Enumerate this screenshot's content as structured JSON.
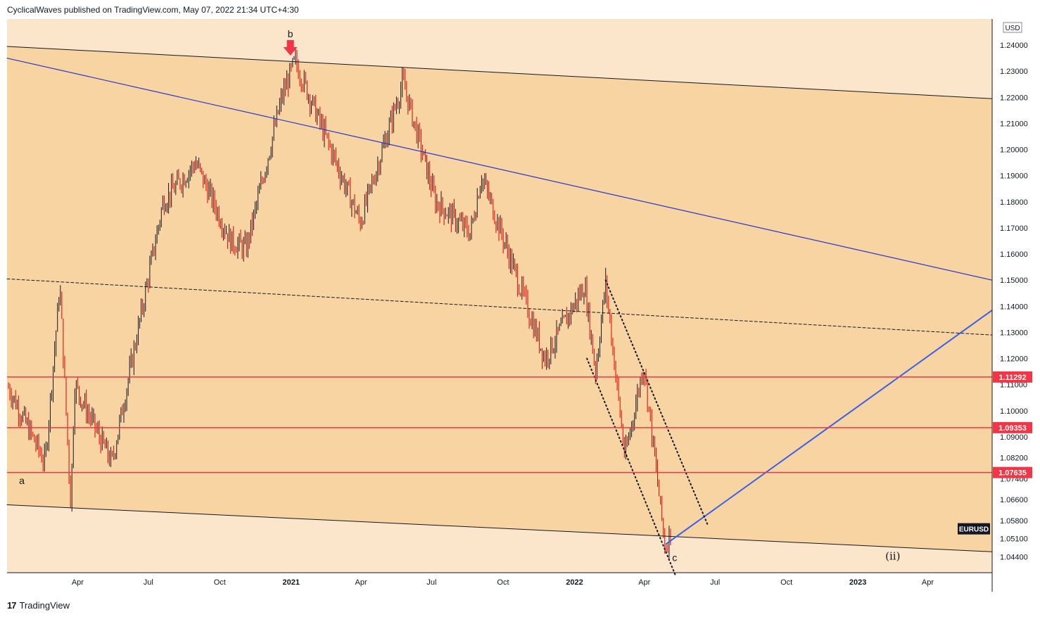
{
  "header": {
    "caption": "CyclicalWaves published on TradingView.com, May 07, 2022 21:34 UTC+4:30"
  },
  "footer": {
    "brand": "TradingView",
    "logo_icon": "tradingview-logo-icon"
  },
  "colors": {
    "background": "#ffffff",
    "channel_fill": "#f8d4a3",
    "outside_fill": "#fbe5cb",
    "candle_up": "#131722",
    "candle_down": "#e00000",
    "horizontal_level": "#f23645",
    "trend_blue": "#2a36c9",
    "projection_blue": "#3a5fe8",
    "label_bg": "#f23645",
    "symbol_bg": "#131722"
  },
  "chart_data": {
    "type": "candlestick",
    "symbol": "EURUSD",
    "currency": "USD",
    "x_ticks": [
      "Apr",
      "Jul",
      "Oct",
      "2021",
      "Apr",
      "Jul",
      "Oct",
      "2022",
      "Apr",
      "Jul",
      "Oct",
      "2023",
      "Apr"
    ],
    "y_ticks": [
      "1.04400",
      "1.05100",
      "1.05800",
      "1.06600",
      "1.07400",
      "1.08200",
      "1.09000",
      "1.10000",
      "1.11000",
      "1.12000",
      "1.13000",
      "1.14000",
      "1.15000",
      "1.16000",
      "1.17000",
      "1.18000",
      "1.19000",
      "1.20000",
      "1.21000",
      "1.22000",
      "1.23000",
      "1.24000"
    ],
    "ylim": [
      1.038,
      1.25
    ],
    "horizontal_levels": [
      {
        "label": "1.11292",
        "value": 1.11292
      },
      {
        "label": "1.09353",
        "value": 1.09353
      },
      {
        "label": "1.07635",
        "value": 1.07635
      }
    ],
    "price_path": [
      {
        "date": "2020-01-01",
        "price": 1.11
      },
      {
        "date": "2020-02-19",
        "price": 1.08
      },
      {
        "date": "2020-03-09",
        "price": 1.148
      },
      {
        "date": "2020-03-23",
        "price": 1.064
      },
      {
        "date": "2020-03-28",
        "price": 1.11
      },
      {
        "date": "2020-05-15",
        "price": 1.08
      },
      {
        "date": "2020-07-20",
        "price": 1.18
      },
      {
        "date": "2020-08-31",
        "price": 1.195
      },
      {
        "date": "2020-10-15",
        "price": 1.165
      },
      {
        "date": "2020-11-04",
        "price": 1.162
      },
      {
        "date": "2020-12-20",
        "price": 1.22
      },
      {
        "date": "2021-01-06",
        "price": 1.234
      },
      {
        "date": "2021-03-31",
        "price": 1.172
      },
      {
        "date": "2021-05-25",
        "price": 1.226
      },
      {
        "date": "2021-07-06",
        "price": 1.18
      },
      {
        "date": "2021-08-20",
        "price": 1.168
      },
      {
        "date": "2021-09-03",
        "price": 1.19
      },
      {
        "date": "2021-11-24",
        "price": 1.12
      },
      {
        "date": "2022-01-14",
        "price": 1.148
      },
      {
        "date": "2022-01-28",
        "price": 1.115
      },
      {
        "date": "2022-02-10",
        "price": 1.149
      },
      {
        "date": "2022-03-07",
        "price": 1.082
      },
      {
        "date": "2022-03-31",
        "price": 1.118
      },
      {
        "date": "2022-04-28",
        "price": 1.047
      },
      {
        "date": "2022-05-06",
        "price": 1.056
      }
    ],
    "annotations": [
      {
        "text": "b",
        "date": "2020-12-31",
        "price": 1.243
      },
      {
        "text": "a",
        "date": "2020-01-20",
        "price": 1.072
      },
      {
        "text": "c",
        "date": "2022-05-10",
        "price": 1.0425
      },
      {
        "text": "(ii)",
        "date": "2023-02-15",
        "price": 1.043
      }
    ],
    "trendlines": [
      {
        "name": "channel-top",
        "from": {
          "date": "2020-01-01",
          "price": 1.2395
        },
        "to": {
          "date": "2023-06-23",
          "price": 1.2195
        }
      },
      {
        "name": "channel-bottom",
        "from": {
          "date": "2020-01-01",
          "price": 1.064
        },
        "to": {
          "date": "2023-06-23",
          "price": 1.046
        }
      },
      {
        "name": "channel-mid-dashed",
        "from": {
          "date": "2020-01-01",
          "price": 1.1505
        },
        "to": {
          "date": "2023-06-23",
          "price": 1.129
        }
      },
      {
        "name": "blue-trendline",
        "from": {
          "date": "2020-01-01",
          "price": 1.235
        },
        "to": {
          "date": "2023-06-23",
          "price": 1.15
        }
      },
      {
        "name": "blue-projection",
        "from": {
          "date": "2022-04-29",
          "price": 1.049
        },
        "to": {
          "date": "2023-06-23",
          "price": 1.1385
        }
      },
      {
        "name": "falling-channel-upper",
        "from": {
          "date": "2022-02-10",
          "price": 1.15
        },
        "to": {
          "date": "2022-06-22",
          "price": 1.056
        }
      },
      {
        "name": "falling-channel-lower",
        "from": {
          "date": "2022-01-17",
          "price": 1.12
        },
        "to": {
          "date": "2022-05-11",
          "price": 1.037
        }
      }
    ],
    "marker": {
      "name": "down-arrow",
      "date": "2020-12-31",
      "price": 1.236
    }
  }
}
